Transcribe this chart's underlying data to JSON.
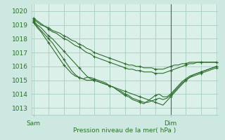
{
  "background_color": "#cce8e0",
  "plot_bg_color": "#daf0e8",
  "line_color": "#2d6e2d",
  "grid_color": "#a8ccc0",
  "xlabel": "Pression niveau de la mer( hPa )",
  "ylim": [
    1012.5,
    1020.5
  ],
  "yticks": [
    1013,
    1014,
    1015,
    1016,
    1017,
    1018,
    1019,
    1020
  ],
  "xtick_labels": [
    "Sam",
    "Dim"
  ],
  "xtick_positions": [
    0,
    36
  ],
  "total_points": 49,
  "vline_x": 36,
  "series": [
    [
      1019.5,
      1019.3,
      1019.1,
      1018.9,
      1018.8,
      1018.6,
      1018.5,
      1018.4,
      1018.2,
      1018.1,
      1017.9,
      1017.8,
      1017.6,
      1017.5,
      1017.3,
      1017.2,
      1017.0,
      1016.9,
      1016.8,
      1016.7,
      1016.6,
      1016.5,
      1016.4,
      1016.3,
      1016.2,
      1016.1,
      1016.1,
      1016.0,
      1016.0,
      1015.9,
      1015.9,
      1015.9,
      1015.8,
      1015.8,
      1015.8,
      1015.9,
      1016.0,
      1016.1,
      1016.1,
      1016.2,
      1016.2,
      1016.3,
      1016.3,
      1016.3,
      1016.3,
      1016.3,
      1016.3,
      1016.3,
      1016.3
    ],
    [
      1019.4,
      1019.2,
      1019.0,
      1018.9,
      1018.7,
      1018.5,
      1018.4,
      1018.2,
      1018.0,
      1017.9,
      1017.7,
      1017.5,
      1017.4,
      1017.2,
      1017.0,
      1016.9,
      1016.7,
      1016.6,
      1016.5,
      1016.4,
      1016.3,
      1016.2,
      1016.1,
      1016.0,
      1015.9,
      1015.8,
      1015.8,
      1015.7,
      1015.7,
      1015.6,
      1015.6,
      1015.6,
      1015.5,
      1015.5,
      1015.5,
      1015.6,
      1015.7,
      1015.8,
      1015.9,
      1016.0,
      1016.1,
      1016.2,
      1016.2,
      1016.3,
      1016.3,
      1016.3,
      1016.3,
      1016.3,
      1016.3
    ],
    [
      1019.3,
      1019.0,
      1018.8,
      1018.5,
      1018.2,
      1018.0,
      1017.7,
      1017.4,
      1017.1,
      1016.8,
      1016.5,
      1016.2,
      1015.9,
      1015.6,
      1015.3,
      1015.1,
      1015.0,
      1014.9,
      1014.8,
      1014.7,
      1014.6,
      1014.5,
      1014.4,
      1014.3,
      1014.2,
      1014.1,
      1014.0,
      1013.9,
      1013.8,
      1013.7,
      1013.6,
      1013.5,
      1013.4,
      1013.3,
      1013.2,
      1013.5,
      1013.8,
      1014.1,
      1014.4,
      1014.7,
      1015.0,
      1015.2,
      1015.4,
      1015.5,
      1015.6,
      1015.7,
      1015.8,
      1015.9,
      1016.0
    ],
    [
      1019.2,
      1018.9,
      1018.6,
      1018.3,
      1018.0,
      1017.7,
      1017.3,
      1016.9,
      1016.5,
      1016.1,
      1015.7,
      1015.4,
      1015.2,
      1015.1,
      1015.0,
      1015.0,
      1015.0,
      1014.9,
      1014.8,
      1014.7,
      1014.6,
      1014.5,
      1014.3,
      1014.2,
      1014.0,
      1013.9,
      1013.7,
      1013.6,
      1013.5,
      1013.4,
      1013.4,
      1013.5,
      1013.6,
      1013.7,
      1013.6,
      1013.7,
      1013.9,
      1014.2,
      1014.5,
      1014.8,
      1015.0,
      1015.2,
      1015.3,
      1015.4,
      1015.5,
      1015.6,
      1015.7,
      1015.8,
      1015.9
    ],
    [
      1019.2,
      1018.8,
      1018.5,
      1018.1,
      1017.7,
      1017.3,
      1016.9,
      1016.5,
      1016.1,
      1015.8,
      1015.5,
      1015.3,
      1015.2,
      1015.1,
      1015.2,
      1015.2,
      1015.1,
      1015.0,
      1014.9,
      1014.8,
      1014.6,
      1014.5,
      1014.3,
      1014.1,
      1013.9,
      1013.8,
      1013.6,
      1013.5,
      1013.4,
      1013.3,
      1013.5,
      1013.7,
      1013.9,
      1014.0,
      1013.8,
      1013.8,
      1014.0,
      1014.3,
      1014.6,
      1014.9,
      1015.1,
      1015.3,
      1015.4,
      1015.5,
      1015.6,
      1015.7,
      1015.8,
      1015.9,
      1016.0
    ]
  ]
}
